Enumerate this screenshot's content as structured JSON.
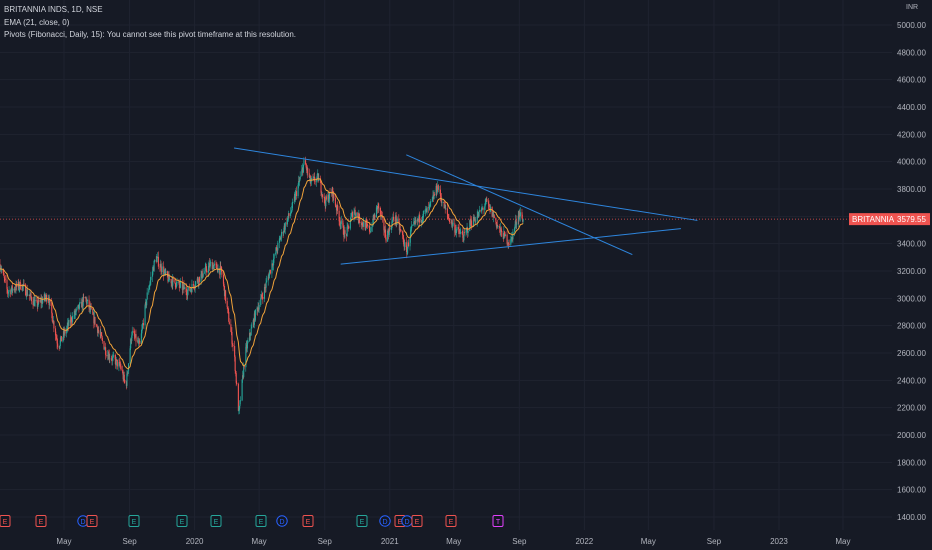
{
  "legend": {
    "symbol": "BRITANNIA INDS, 1D, NSE",
    "ema": "EMA (21, close, 0)",
    "pivots": "Pivots (Fibonacci, Daily, 15): You cannot see this pivot timeframe at this resolution."
  },
  "currency": "INR",
  "price_tag": {
    "label": "BRITANNIA",
    "value": "3579.55",
    "color": "#ef5350"
  },
  "colors": {
    "background": "#161a25",
    "up": "#26a69a",
    "down": "#ef5350",
    "ema": "#f2a33a",
    "trendline": "#2e86de",
    "grid": "#1f2330"
  },
  "event_markers": [
    {
      "letter": "E",
      "type": "earnings",
      "color": "#ef5350"
    },
    {
      "letter": "E",
      "type": "earnings",
      "color": "#ef5350"
    },
    {
      "letter": "D",
      "type": "dividend",
      "color": "#2962ff"
    },
    {
      "letter": "E",
      "type": "earnings",
      "color": "#ef5350"
    },
    {
      "letter": "E",
      "type": "earnings",
      "color": "#26a69a"
    },
    {
      "letter": "E",
      "type": "earnings",
      "color": "#26a69a"
    },
    {
      "letter": "E",
      "type": "earnings",
      "color": "#26a69a"
    },
    {
      "letter": "E",
      "type": "earnings",
      "color": "#26a69a"
    },
    {
      "letter": "D",
      "type": "dividend",
      "color": "#2962ff"
    },
    {
      "letter": "E",
      "type": "earnings",
      "color": "#ef5350"
    },
    {
      "letter": "E",
      "type": "earnings",
      "color": "#26a69a"
    },
    {
      "letter": "D",
      "type": "dividend",
      "color": "#2962ff"
    },
    {
      "letter": "E",
      "type": "earnings",
      "color": "#ef5350"
    },
    {
      "letter": "D",
      "type": "dividend",
      "color": "#2962ff"
    },
    {
      "letter": "E",
      "type": "earnings",
      "color": "#ef5350"
    },
    {
      "letter": "E",
      "type": "earnings",
      "color": "#ef5350"
    },
    {
      "letter": "T",
      "type": "split",
      "color": "#e040fb"
    }
  ],
  "chart_data": {
    "type": "candlestick",
    "title": "BRITANNIA INDS, 1D, NSE",
    "y_ticks": [
      1400,
      1600,
      1800,
      2000,
      2200,
      2400,
      2600,
      2800,
      3000,
      3200,
      3400,
      3600,
      3800,
      4000,
      4200,
      4400,
      4600,
      4800,
      5000
    ],
    "y_tick_labels": [
      "1400.00",
      "1600.00",
      "1800.00",
      "2000.00",
      "2200.00",
      "2400.00",
      "2600.00",
      "2800.00",
      "3000.00",
      "3200.00",
      "3400.00",
      "3600.00",
      "3800.00",
      "4000.00",
      "4200.00",
      "4400.00",
      "4600.00",
      "4800.00",
      "5000.00"
    ],
    "ylim": [
      1350,
      5150
    ],
    "x_ticks": [
      "May",
      "Sep",
      "2020",
      "May",
      "Sep",
      "2021",
      "May",
      "Sep",
      "2022",
      "May",
      "Sep",
      "2023",
      "May"
    ],
    "x_tick_dates": [
      "2019-05-01",
      "2019-09-01",
      "2020-01-01",
      "2020-05-01",
      "2020-09-01",
      "2021-01-01",
      "2021-05-01",
      "2021-09-01",
      "2022-01-01",
      "2022-05-01",
      "2022-09-01",
      "2023-01-01",
      "2023-05-01"
    ],
    "xlim": [
      "2019-01-01",
      "2023-08-01"
    ],
    "last_close": 3579.55,
    "price_keypoints": [
      [
        "2019-01-01",
        3250
      ],
      [
        "2019-01-15",
        3050
      ],
      [
        "2019-02-10",
        3100
      ],
      [
        "2019-03-10",
        2950
      ],
      [
        "2019-04-01",
        3020
      ],
      [
        "2019-04-20",
        2650
      ],
      [
        "2019-05-15",
        2850
      ],
      [
        "2019-06-10",
        3000
      ],
      [
        "2019-07-01",
        2800
      ],
      [
        "2019-07-20",
        2600
      ],
      [
        "2019-08-15",
        2500
      ],
      [
        "2019-08-25",
        2350
      ],
      [
        "2019-09-05",
        2750
      ],
      [
        "2019-09-20",
        2650
      ],
      [
        "2019-10-05",
        3050
      ],
      [
        "2019-10-20",
        3300
      ],
      [
        "2019-11-10",
        3150
      ],
      [
        "2019-12-01",
        3100
      ],
      [
        "2019-12-20",
        3050
      ],
      [
        "2020-01-10",
        3150
      ],
      [
        "2020-02-01",
        3250
      ],
      [
        "2020-02-20",
        3200
      ],
      [
        "2020-03-01",
        2950
      ],
      [
        "2020-03-15",
        2600
      ],
      [
        "2020-03-24",
        2150
      ],
      [
        "2020-04-05",
        2600
      ],
      [
        "2020-04-25",
        2900
      ],
      [
        "2020-05-10",
        3050
      ],
      [
        "2020-05-25",
        3250
      ],
      [
        "2020-06-15",
        3500
      ],
      [
        "2020-07-01",
        3650
      ],
      [
        "2020-07-15",
        3850
      ],
      [
        "2020-07-25",
        4000
      ],
      [
        "2020-08-05",
        3850
      ],
      [
        "2020-08-20",
        3880
      ],
      [
        "2020-09-01",
        3700
      ],
      [
        "2020-09-15",
        3780
      ],
      [
        "2020-10-01",
        3550
      ],
      [
        "2020-10-10",
        3450
      ],
      [
        "2020-10-25",
        3650
      ],
      [
        "2020-11-10",
        3550
      ],
      [
        "2020-11-25",
        3500
      ],
      [
        "2020-12-10",
        3680
      ],
      [
        "2020-12-25",
        3450
      ],
      [
        "2021-01-10",
        3600
      ],
      [
        "2021-01-25",
        3450
      ],
      [
        "2021-02-01",
        3330
      ],
      [
        "2021-02-10",
        3500
      ],
      [
        "2021-03-01",
        3600
      ],
      [
        "2021-03-15",
        3650
      ],
      [
        "2021-04-01",
        3820
      ],
      [
        "2021-04-10",
        3700
      ],
      [
        "2021-04-20",
        3600
      ],
      [
        "2021-05-05",
        3500
      ],
      [
        "2021-05-20",
        3450
      ],
      [
        "2021-06-01",
        3550
      ],
      [
        "2021-06-15",
        3600
      ],
      [
        "2021-07-01",
        3700
      ],
      [
        "2021-07-15",
        3600
      ],
      [
        "2021-07-25",
        3500
      ],
      [
        "2021-08-05",
        3450
      ],
      [
        "2021-08-15",
        3400
      ],
      [
        "2021-08-25",
        3550
      ],
      [
        "2021-09-01",
        3620
      ],
      [
        "2021-09-08",
        3579.55
      ]
    ],
    "trendlines": [
      {
        "from": [
          "2020-03-15",
          4100
        ],
        "to": [
          "2022-08-01",
          3570
        ]
      },
      {
        "from": [
          "2021-02-01",
          4050
        ],
        "to": [
          "2022-04-01",
          3320
        ]
      },
      {
        "from": [
          "2020-10-01",
          3250
        ],
        "to": [
          "2022-07-01",
          3510
        ]
      }
    ],
    "ema_period": 21
  }
}
